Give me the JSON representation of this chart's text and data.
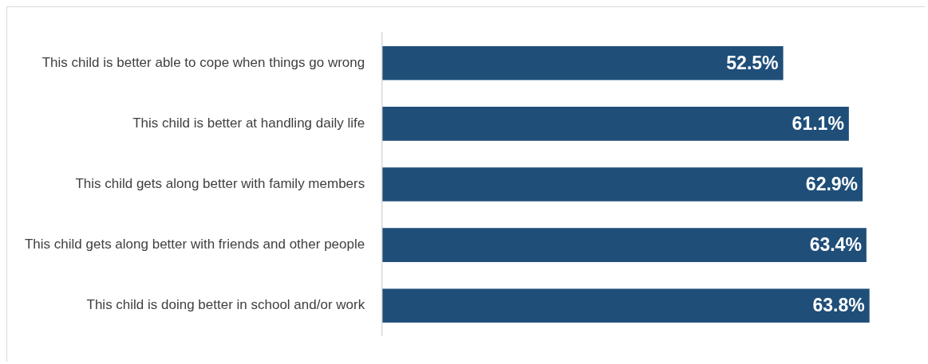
{
  "chart_data": {
    "type": "bar",
    "orientation": "horizontal",
    "categories": [
      "This child is better able to cope when things go wrong",
      "This child is better at handling daily life",
      "This child gets along better with family members",
      "This child gets along better with friends and other people",
      "This child is doing better in school and/or work"
    ],
    "values": [
      52.5,
      61.1,
      62.9,
      63.4,
      63.8
    ],
    "value_labels": [
      "52.5%",
      "61.1%",
      "62.9%",
      "63.4%",
      "63.8%"
    ],
    "color": "#1f4e79",
    "tick_labels": "y",
    "grid": false,
    "legend": false
  }
}
